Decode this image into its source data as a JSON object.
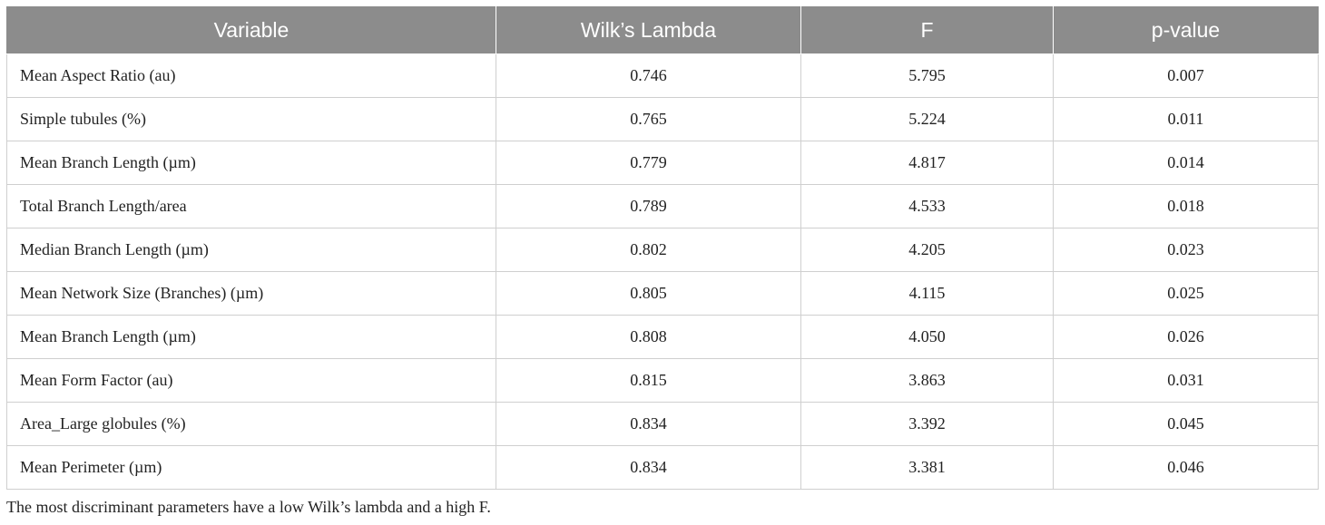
{
  "table": {
    "headers": [
      "Variable",
      "Wilk’s Lambda",
      "F",
      "p-value"
    ],
    "rows": [
      [
        "Mean Aspect Ratio (au)",
        "0.746",
        "5.795",
        "0.007"
      ],
      [
        "Simple tubules (%)",
        "0.765",
        "5.224",
        "0.011"
      ],
      [
        "Mean Branch Length (µm)",
        "0.779",
        "4.817",
        "0.014"
      ],
      [
        "Total Branch Length/area",
        "0.789",
        "4.533",
        "0.018"
      ],
      [
        "Median Branch Length (µm)",
        "0.802",
        "4.205",
        "0.023"
      ],
      [
        "Mean Network Size (Branches) (µm)",
        "0.805",
        "4.115",
        "0.025"
      ],
      [
        "Mean Branch Length (µm)",
        "0.808",
        "4.050",
        "0.026"
      ],
      [
        "Mean Form Factor (au)",
        "0.815",
        "3.863",
        "0.031"
      ],
      [
        "Area_Large globules (%)",
        "0.834",
        "3.392",
        "0.045"
      ],
      [
        "Mean Perimeter (µm)",
        "0.834",
        "3.381",
        "0.046"
      ]
    ]
  },
  "footnote": "The most discriminant parameters have a low Wilk’s lambda and a high F.",
  "colors": {
    "header_bg": "#8c8c8c",
    "header_text": "#ffffff",
    "grid": "#cfcfcf",
    "text": "#222222"
  }
}
